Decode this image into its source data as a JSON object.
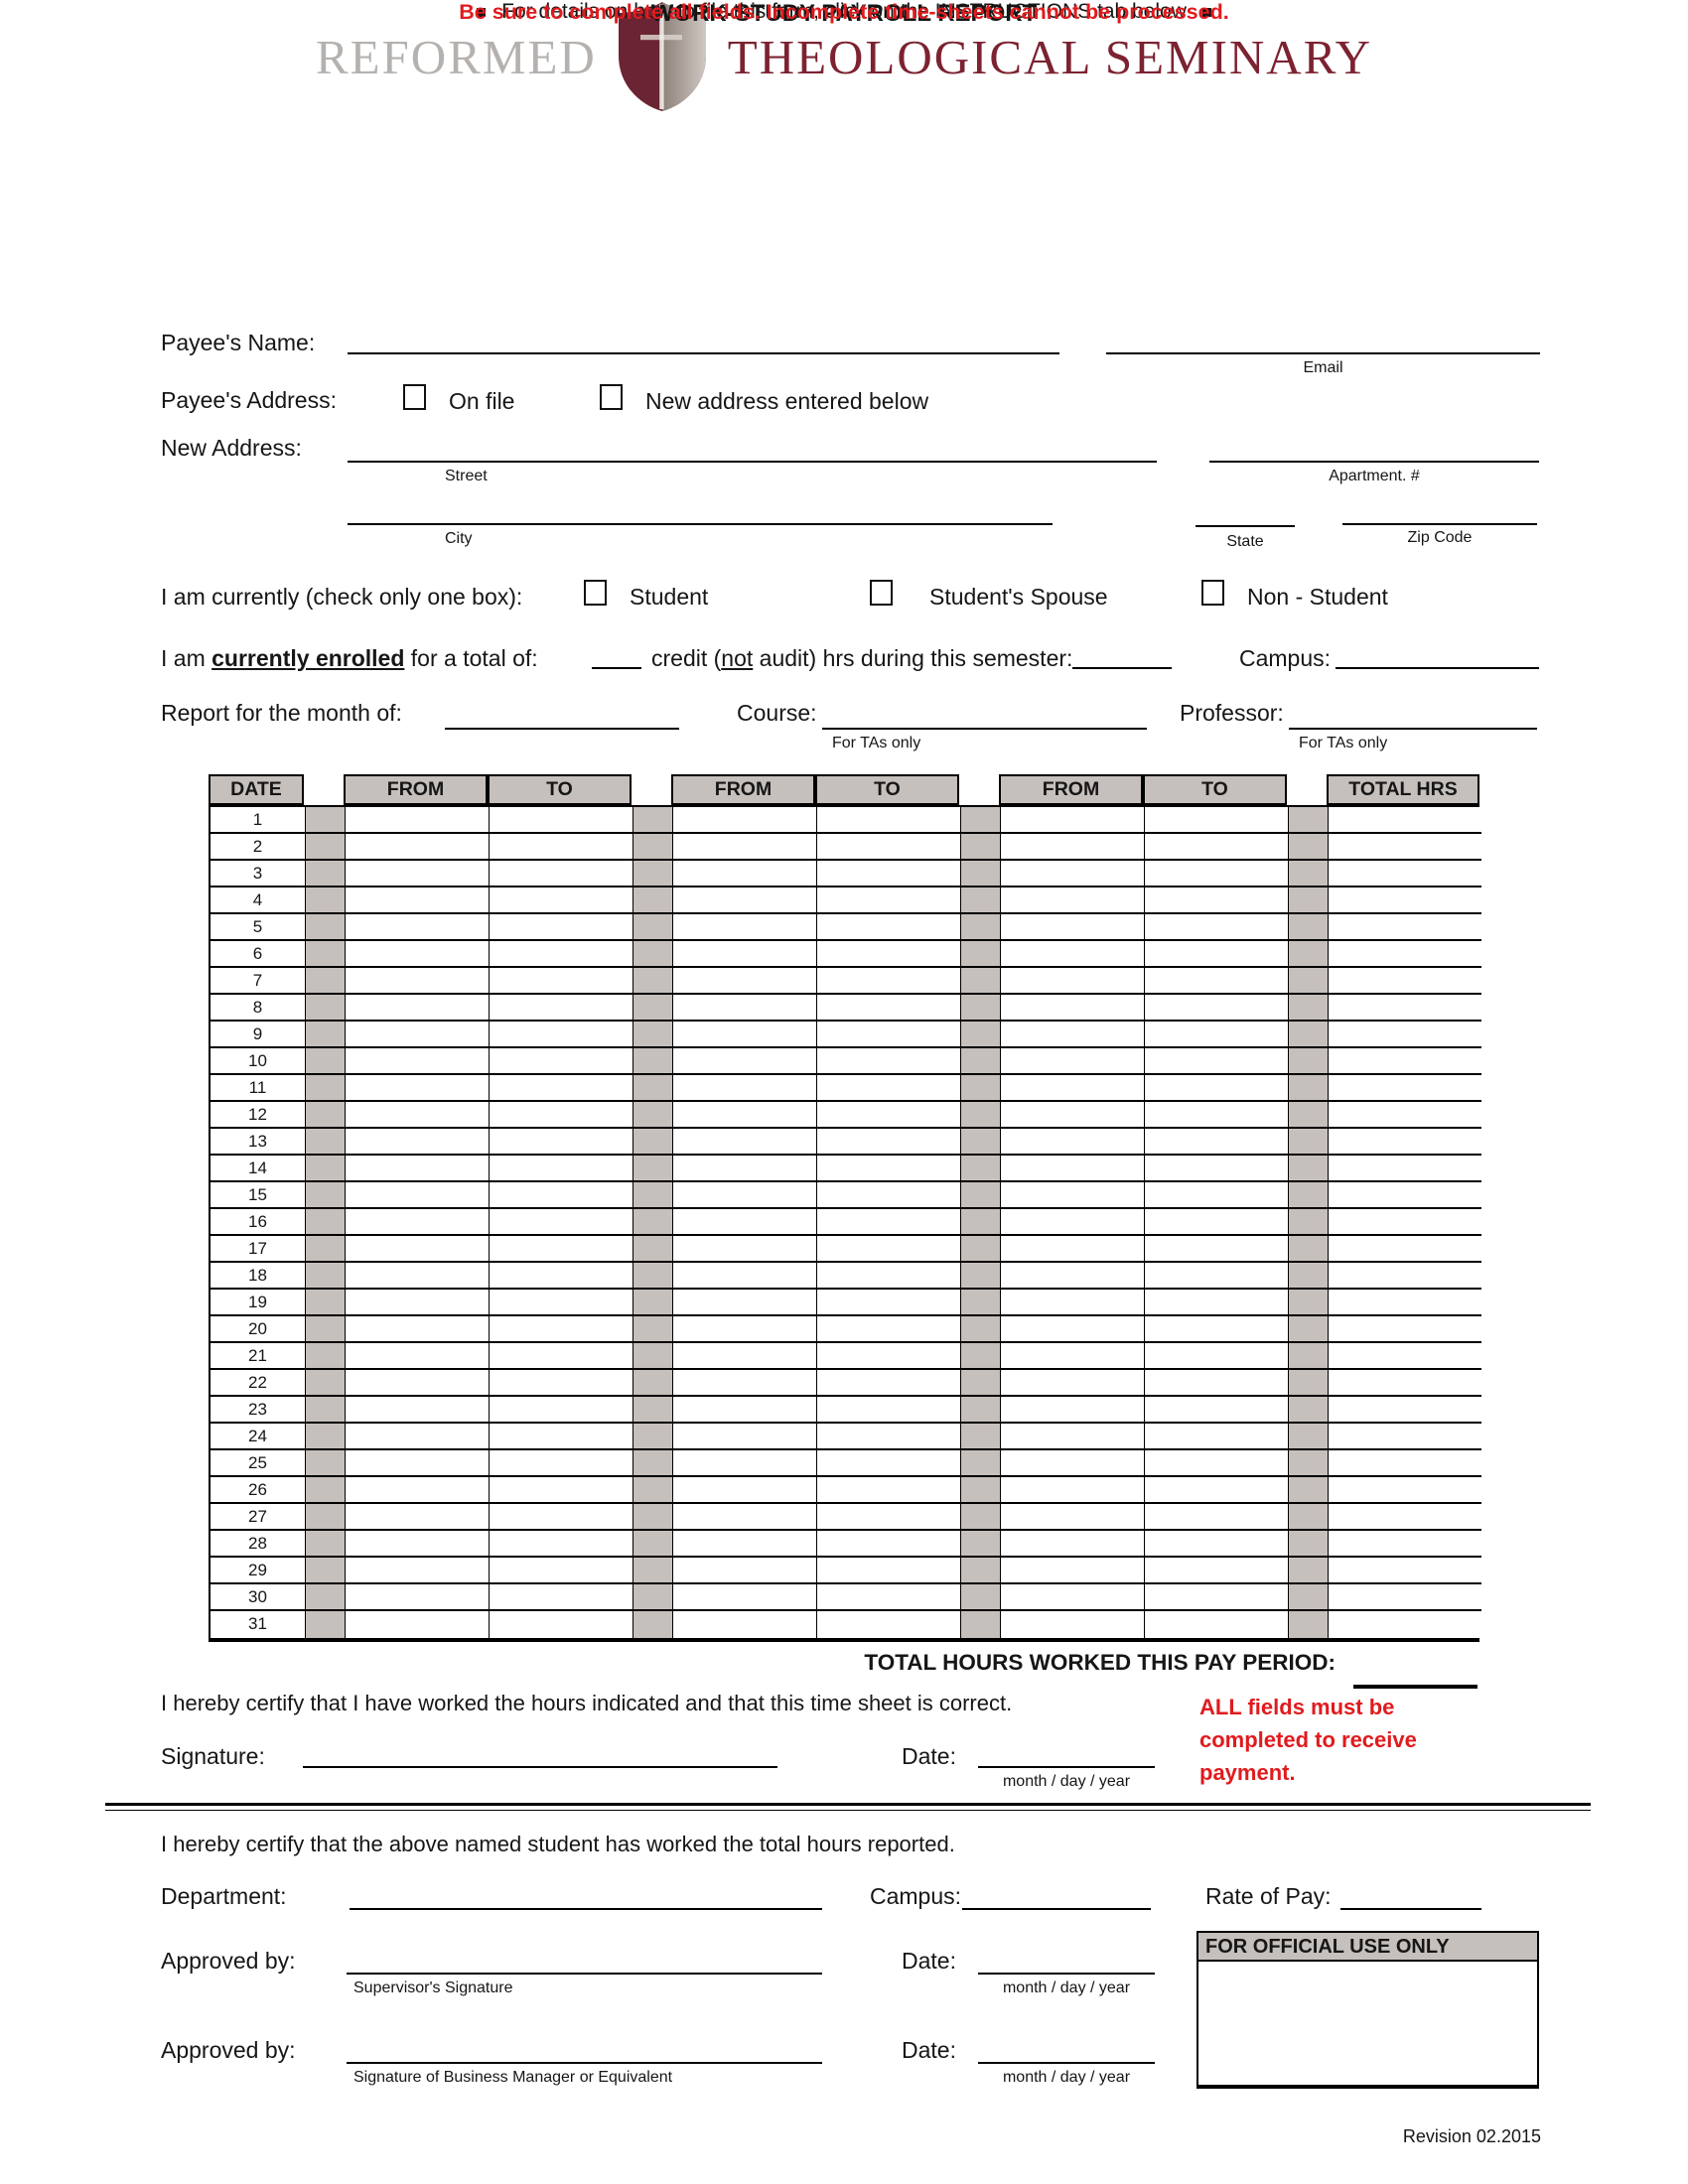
{
  "logo": {
    "word_gray": "REFORMED",
    "word_maroon": "THEOLOGICAL SEMINARY"
  },
  "header": {
    "title": "WORK-STUDY PAYROLL REPORT",
    "instruction": "For details on how to file this form, click on the INSTRUCTIONS tab below",
    "warning": "Be sure to complete all fields. Incomplete time-sheets cannot be processed."
  },
  "payee": {
    "name_label": "Payee's Name:",
    "email_caption": "Email",
    "address_label": "Payee's Address:",
    "on_file_label": "On file",
    "new_address_option_label": "New address entered below",
    "new_address_label": "New Address:",
    "street_caption": "Street",
    "apartment_caption": "Apartment. #",
    "city_caption": "City",
    "state_caption": "State",
    "zip_caption": "Zip Code"
  },
  "status": {
    "prompt": "I am currently (check only one box):",
    "student_label": "Student",
    "spouse_label": "Student's Spouse",
    "non_student_label": "Non - Student"
  },
  "enrollment": {
    "prefix": "I  am ",
    "emphasized": "currently enrolled",
    "middle": " for a total of:",
    "credit_open": "credit (",
    "credit_not": "not",
    "credit_close": " audit) hrs during this semester:",
    "campus_label": "Campus:"
  },
  "report": {
    "month_label": "Report for the month of:",
    "course_label": "Course:",
    "professor_label": "Professor:",
    "tas_caption": "For TAs only"
  },
  "table": {
    "headers": [
      "DATE",
      "FROM",
      "TO",
      "FROM",
      "TO",
      "FROM",
      "TO",
      "TOTAL HRS"
    ],
    "days": [
      "1",
      "2",
      "3",
      "4",
      "5",
      "6",
      "7",
      "8",
      "9",
      "10",
      "11",
      "12",
      "13",
      "14",
      "15",
      "16",
      "17",
      "18",
      "19",
      "20",
      "21",
      "22",
      "23",
      "24",
      "25",
      "26",
      "27",
      "28",
      "29",
      "30",
      "31"
    ]
  },
  "summary": {
    "total_label": "TOTAL HOURS WORKED THIS PAY PERIOD:"
  },
  "employee_cert": {
    "certify_text": "I hereby certify that I have worked the hours indicated and that this time sheet is correct.",
    "note": "ALL fields must be completed to receive payment.",
    "signature_label": "Signature:",
    "date_label": "Date:",
    "mdy_caption": "month / day / year"
  },
  "approval": {
    "certify_text": "I hereby certify that the above named student has worked the total hours reported.",
    "department_label": "Department:",
    "campus_label": "Campus:",
    "rate_label": "Rate of Pay:",
    "approved_label": "Approved by:",
    "date_label": "Date:",
    "mdy_caption": "month / day / year",
    "supervisor_caption": "Supervisor's Signature",
    "manager_caption": "Signature of Business Manager or Equivalent",
    "official_box_label": "FOR OFFICIAL USE ONLY"
  },
  "footer": {
    "revision": "Revision 02.2015"
  },
  "colors": {
    "maroon": "#7c2231",
    "red": "#e01b1e",
    "table_gray": "#c6c0bc"
  }
}
